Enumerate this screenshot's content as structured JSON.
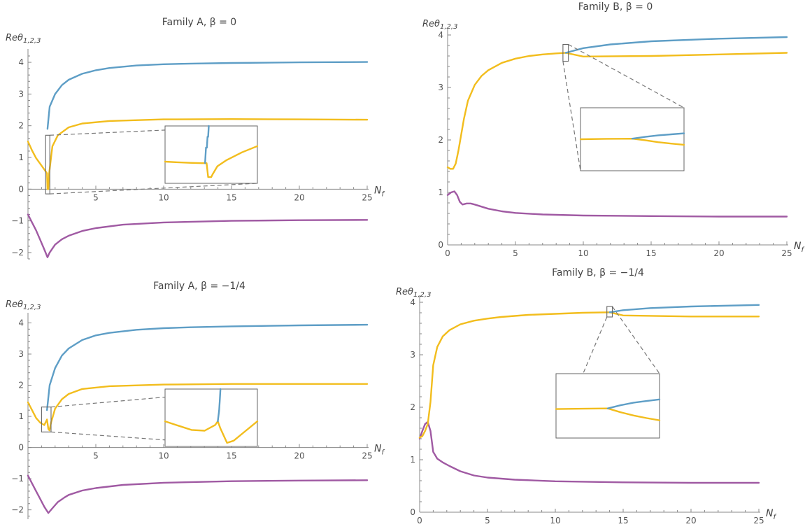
{
  "colors": {
    "blue": "#5e9ec6",
    "yellow": "#f2bd1d",
    "purple": "#a05aa3",
    "axis": "#888888"
  },
  "chart_data": [
    {
      "id": "A0",
      "type": "line",
      "title": "Family A, β = 0",
      "xlabel": "N_f",
      "ylabel": "Reθ_{1,2,3}",
      "xlim": [
        0,
        25
      ],
      "ylim": [
        -2.2,
        4.2
      ],
      "xticks": [
        5,
        10,
        15,
        20,
        25
      ],
      "yticks": [
        -2,
        -1,
        0,
        1,
        2,
        3,
        4
      ],
      "grid": false,
      "series": [
        {
          "color": "blue",
          "x": [
            1.44,
            1.6,
            2,
            2.5,
            3,
            4,
            5,
            6,
            8,
            10,
            12,
            15,
            20,
            25
          ],
          "y": [
            1.9,
            2.6,
            3.0,
            3.28,
            3.45,
            3.64,
            3.75,
            3.82,
            3.9,
            3.94,
            3.96,
            3.98,
            4.0,
            4.01
          ]
        },
        {
          "color": "yellow",
          "x": [
            0,
            0.3,
            0.6,
            0.9,
            1.2,
            1.4,
            1.44,
            1.5,
            1.56,
            1.8,
            2.2,
            3,
            4,
            6,
            10,
            15,
            20,
            25
          ],
          "y": [
            1.5,
            1.22,
            0.98,
            0.8,
            0.62,
            0.5,
            0.0,
            0.0,
            0.5,
            1.35,
            1.7,
            1.95,
            2.07,
            2.15,
            2.2,
            2.21,
            2.2,
            2.19
          ]
        },
        {
          "color": "purple",
          "x": [
            0,
            0.3,
            0.6,
            0.9,
            1.2,
            1.44,
            1.6,
            2,
            2.5,
            3,
            4,
            5,
            7,
            10,
            15,
            20,
            25
          ],
          "y": [
            -0.8,
            -1.05,
            -1.3,
            -1.6,
            -1.9,
            -2.15,
            -2.0,
            -1.75,
            -1.58,
            -1.47,
            -1.32,
            -1.23,
            -1.12,
            -1.05,
            -1.0,
            -0.98,
            -0.97
          ]
        }
      ],
      "inset": {
        "x": [
          1.3,
          1.6
        ],
        "y": [
          -0.15,
          1.7
        ],
        "series": [
          {
            "color": "yellow",
            "x": [
              1.3,
              1.34,
              1.38,
              1.42,
              1.435,
              1.44,
              1.45,
              1.455,
              1.47,
              1.5,
              1.55,
              1.6
            ],
            "y": [
              0.55,
              0.53,
              0.51,
              0.5,
              0.5,
              0.05,
              0.05,
              0.15,
              0.4,
              0.6,
              0.85,
              1.05
            ]
          },
          {
            "color": "blue",
            "x": [
              1.43,
              1.433,
              1.436,
              1.438,
              1.44,
              1.442
            ],
            "y": [
              0.5,
              1.0,
              1.0,
              1.35,
              1.35,
              1.7
            ]
          }
        ]
      }
    },
    {
      "id": "B0",
      "type": "line",
      "title": "Family B, β = 0",
      "xlabel": "N_f",
      "ylabel": "Reθ_{1,2,3}",
      "xlim": [
        0,
        25
      ],
      "ylim": [
        0,
        4
      ],
      "xticks": [
        0,
        5,
        10,
        15,
        20,
        25
      ],
      "yticks": [
        0,
        1,
        2,
        3,
        4
      ],
      "grid": false,
      "series": [
        {
          "color": "purple",
          "x": [
            0,
            0.25,
            0.5,
            0.7,
            0.9,
            1.1,
            1.4,
            1.7,
            2,
            2.5,
            3,
            4,
            5,
            7,
            10,
            15,
            20,
            25
          ],
          "y": [
            0.95,
            1.0,
            1.02,
            0.95,
            0.82,
            0.77,
            0.79,
            0.79,
            0.77,
            0.73,
            0.69,
            0.64,
            0.61,
            0.58,
            0.56,
            0.55,
            0.54,
            0.54
          ]
        },
        {
          "color": "yellow",
          "x": [
            0,
            0.2,
            0.4,
            0.6,
            0.8,
            1.0,
            1.2,
            1.5,
            2,
            2.5,
            3,
            4,
            5,
            6,
            7,
            8,
            8.7,
            10,
            15,
            20,
            25
          ],
          "y": [
            1.48,
            1.45,
            1.45,
            1.55,
            1.8,
            2.1,
            2.4,
            2.75,
            3.05,
            3.22,
            3.33,
            3.47,
            3.55,
            3.6,
            3.63,
            3.65,
            3.66,
            3.59,
            3.6,
            3.63,
            3.66
          ]
        },
        {
          "color": "blue",
          "x": [
            8.7,
            10,
            12,
            15,
            20,
            25
          ],
          "y": [
            3.66,
            3.75,
            3.82,
            3.88,
            3.93,
            3.96
          ]
        }
      ],
      "inset": {
        "x": [
          8.5,
          8.9
        ],
        "y": [
          3.5,
          3.82
        ],
        "series": [
          {
            "color": "yellow",
            "x": [
              8.5,
              8.6,
              8.7,
              8.75,
              8.8,
              8.85,
              8.9
            ],
            "y": [
              3.66,
              3.662,
              3.663,
              3.655,
              3.645,
              3.638,
              3.632
            ]
          },
          {
            "color": "blue",
            "x": [
              8.7,
              8.75,
              8.8,
              8.85,
              8.9
            ],
            "y": [
              3.663,
              3.672,
              3.68,
              3.685,
              3.69
            ]
          }
        ]
      }
    },
    {
      "id": "A1",
      "type": "line",
      "title": "Family A, β = −1/4",
      "xlabel": "N_f",
      "ylabel": "Reθ_{1,2,3}",
      "xlim": [
        0,
        25
      ],
      "ylim": [
        -2.3,
        4.1
      ],
      "xticks": [
        5,
        10,
        15,
        20,
        25
      ],
      "yticks": [
        -2,
        -1,
        0,
        1,
        2,
        3,
        4
      ],
      "grid": false,
      "series": [
        {
          "color": "blue",
          "x": [
            1.4,
            1.6,
            2,
            2.5,
            3,
            4,
            5,
            6,
            8,
            10,
            12,
            15,
            20,
            25
          ],
          "y": [
            1.2,
            2.0,
            2.55,
            2.95,
            3.18,
            3.45,
            3.6,
            3.68,
            3.78,
            3.83,
            3.86,
            3.89,
            3.92,
            3.94
          ]
        },
        {
          "color": "yellow",
          "x": [
            0,
            0.3,
            0.6,
            0.9,
            1.2,
            1.4,
            1.5,
            1.58,
            1.7,
            2,
            2.5,
            3,
            4,
            6,
            10,
            15,
            20,
            25
          ],
          "y": [
            1.45,
            1.2,
            0.95,
            0.8,
            0.72,
            0.9,
            0.6,
            0.55,
            0.8,
            1.25,
            1.55,
            1.72,
            1.88,
            1.97,
            2.02,
            2.04,
            2.04,
            2.04
          ]
        },
        {
          "color": "purple",
          "x": [
            0,
            0.3,
            0.6,
            0.9,
            1.2,
            1.5,
            1.8,
            2.2,
            2.7,
            3,
            4,
            5,
            7,
            10,
            15,
            20,
            25
          ],
          "y": [
            -0.9,
            -1.15,
            -1.4,
            -1.65,
            -1.9,
            -2.1,
            -1.95,
            -1.75,
            -1.6,
            -1.52,
            -1.38,
            -1.3,
            -1.2,
            -1.13,
            -1.08,
            -1.06,
            -1.05
          ]
        }
      ],
      "inset": {
        "x": [
          1.0,
          1.7
        ],
        "y": [
          0.5,
          1.3
        ],
        "series": [
          {
            "color": "yellow",
            "x": [
              1.0,
              1.1,
              1.2,
              1.3,
              1.38,
              1.4,
              1.42,
              1.47,
              1.52,
              1.6,
              1.7
            ],
            "y": [
              0.85,
              0.79,
              0.73,
              0.72,
              0.8,
              0.85,
              0.75,
              0.55,
              0.58,
              0.7,
              0.85
            ]
          },
          {
            "color": "blue",
            "x": [
              1.4,
              1.41,
              1.415,
              1.42
            ],
            "y": [
              0.85,
              1.0,
              1.15,
              1.3
            ]
          }
        ]
      }
    },
    {
      "id": "B1",
      "type": "line",
      "title": "Family B, β = −1/4",
      "xlabel": "N_f",
      "ylabel": "Reθ_{1,2,3}",
      "xlim": [
        0,
        25
      ],
      "ylim": [
        0,
        4
      ],
      "xticks": [
        0,
        5,
        10,
        15,
        20,
        25
      ],
      "yticks": [
        0,
        1,
        2,
        3,
        4
      ],
      "grid": false,
      "series": [
        {
          "color": "purple",
          "x": [
            0,
            0.2,
            0.4,
            0.6,
            0.8,
            1.0,
            1.3,
            1.7,
            2.2,
            3,
            4,
            5,
            7,
            10,
            15,
            20,
            25
          ],
          "y": [
            1.4,
            1.55,
            1.68,
            1.72,
            1.55,
            1.15,
            1.02,
            0.95,
            0.88,
            0.78,
            0.7,
            0.66,
            0.62,
            0.59,
            0.57,
            0.56,
            0.56
          ]
        },
        {
          "color": "yellow",
          "x": [
            0,
            0.2,
            0.4,
            0.6,
            0.8,
            1.0,
            1.3,
            1.7,
            2.2,
            3,
            4,
            5,
            6,
            8,
            10,
            12,
            14,
            15,
            20,
            25
          ],
          "y": [
            1.42,
            1.45,
            1.55,
            1.68,
            2.1,
            2.8,
            3.15,
            3.35,
            3.47,
            3.58,
            3.65,
            3.69,
            3.72,
            3.76,
            3.78,
            3.8,
            3.81,
            3.75,
            3.73,
            3.73
          ]
        },
        {
          "color": "blue",
          "x": [
            14,
            15,
            17,
            20,
            25
          ],
          "y": [
            3.81,
            3.85,
            3.89,
            3.92,
            3.95
          ]
        }
      ],
      "inset": {
        "x": [
          13.8,
          14.2
        ],
        "y": [
          3.72,
          3.92
        ],
        "series": [
          {
            "color": "yellow",
            "x": [
              13.8,
              13.9,
              14.0,
              14.05,
              14.1,
              14.15,
              14.2
            ],
            "y": [
              3.81,
              3.811,
              3.812,
              3.8,
              3.79,
              3.782,
              3.775
            ]
          },
          {
            "color": "blue",
            "x": [
              14.0,
              14.05,
              14.1,
              14.15,
              14.2
            ],
            "y": [
              3.812,
              3.822,
              3.83,
              3.835,
              3.84
            ]
          }
        ]
      }
    }
  ]
}
